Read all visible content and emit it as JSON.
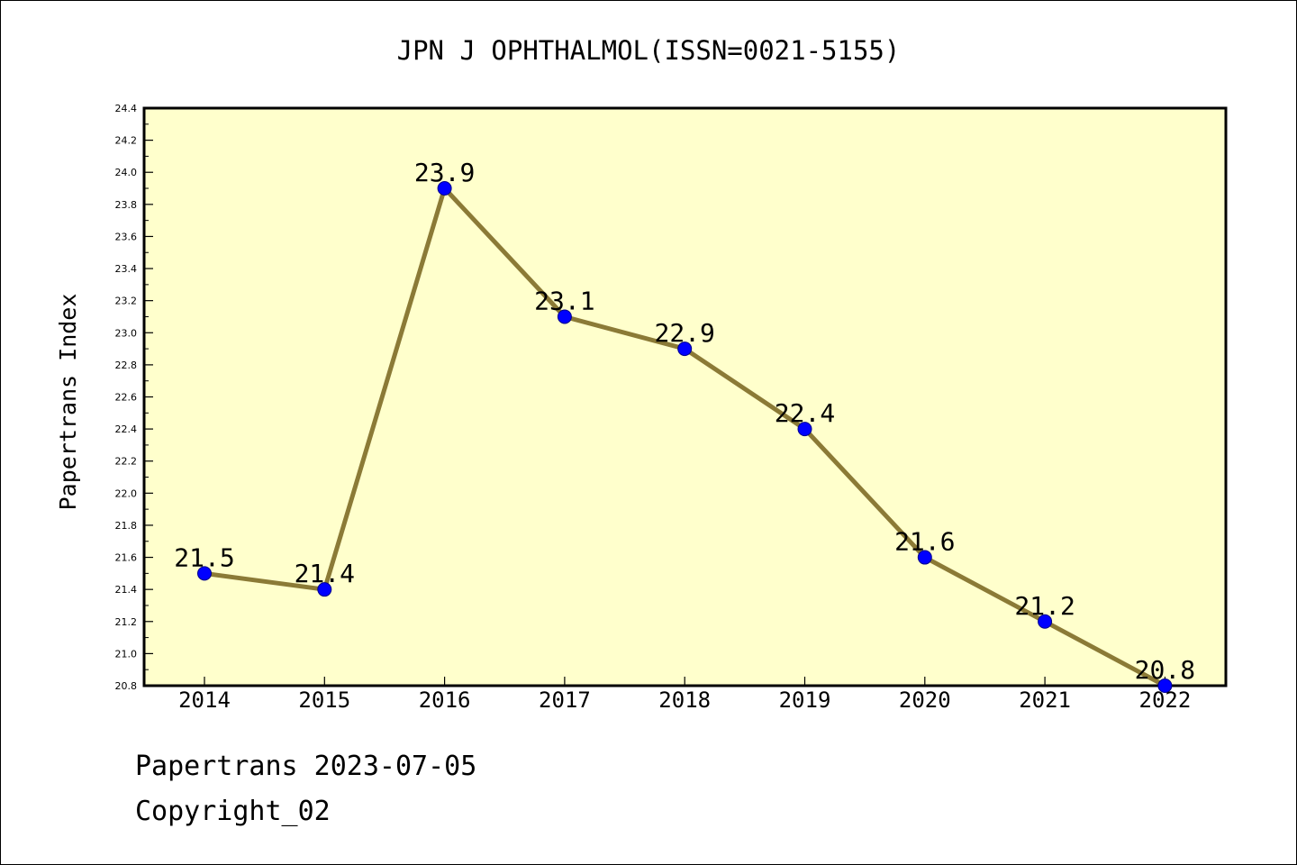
{
  "colors": {
    "plot_background": "#ffffcc",
    "line": "#8b7a36",
    "marker": "#0000ff"
  },
  "chart_data": {
    "type": "line",
    "title": "JPN J OPHTHALMOL(ISSN=0021-5155)",
    "ylabel": "Papertrans Index",
    "xlabel": "",
    "categories": [
      "2014",
      "2015",
      "2016",
      "2017",
      "2018",
      "2019",
      "2020",
      "2021",
      "2022"
    ],
    "values": [
      21.5,
      21.4,
      23.9,
      23.1,
      22.9,
      22.4,
      21.6,
      21.2,
      20.8
    ],
    "data_labels": [
      "21.5",
      "21.4",
      "23.9",
      "23.1",
      "22.9",
      "22.4",
      "21.6",
      "21.2",
      "20.8"
    ],
    "ylim": [
      20.8,
      24.4
    ],
    "yticks": [
      "20.8",
      "21.0",
      "21.2",
      "21.4",
      "21.6",
      "21.8",
      "22.0",
      "22.2",
      "22.4",
      "22.6",
      "22.8",
      "23.0",
      "23.2",
      "23.4",
      "23.6",
      "23.8",
      "24.0",
      "24.2",
      "24.4"
    ],
    "grid": false,
    "legend": "none",
    "marker": "circle"
  },
  "footer": {
    "stamp": "Papertrans 2023-07-05",
    "copyright": "Copyright_02"
  }
}
